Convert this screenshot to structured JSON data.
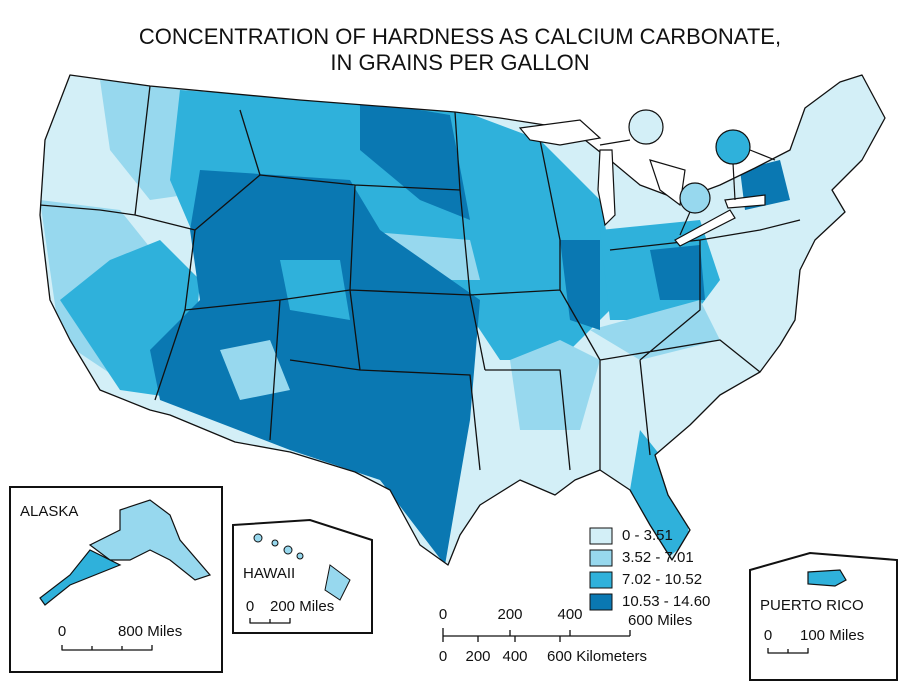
{
  "title": [
    "CONCENTRATION OF HARDNESS AS CALCIUM CARBONATE,",
    "IN GRAINS PER GALLON"
  ],
  "legend": [
    {
      "label": "0 - 3.51",
      "color": "#d3eff7"
    },
    {
      "label": "3.52 - 7.01",
      "color": "#97d8ee"
    },
    {
      "label": "7.02 - 10.52",
      "color": "#2fb1db"
    },
    {
      "label": "10.53 - 14.60",
      "color": "#0a78b2"
    }
  ],
  "insets": {
    "alaska": {
      "label": "ALASKA",
      "scale": [
        "0",
        "800 Miles"
      ]
    },
    "hawaii": {
      "label": "HAWAII",
      "scale": [
        "0",
        "200 Miles"
      ]
    },
    "puerto_rico": {
      "label": "PUERTO RICO",
      "scale": [
        "0",
        "100 Miles"
      ]
    }
  },
  "scale_bar": {
    "miles": [
      "0",
      "200",
      "400",
      "600 Miles"
    ],
    "kilometers": [
      "0",
      "200",
      "400",
      "600 Kilometers"
    ]
  }
}
